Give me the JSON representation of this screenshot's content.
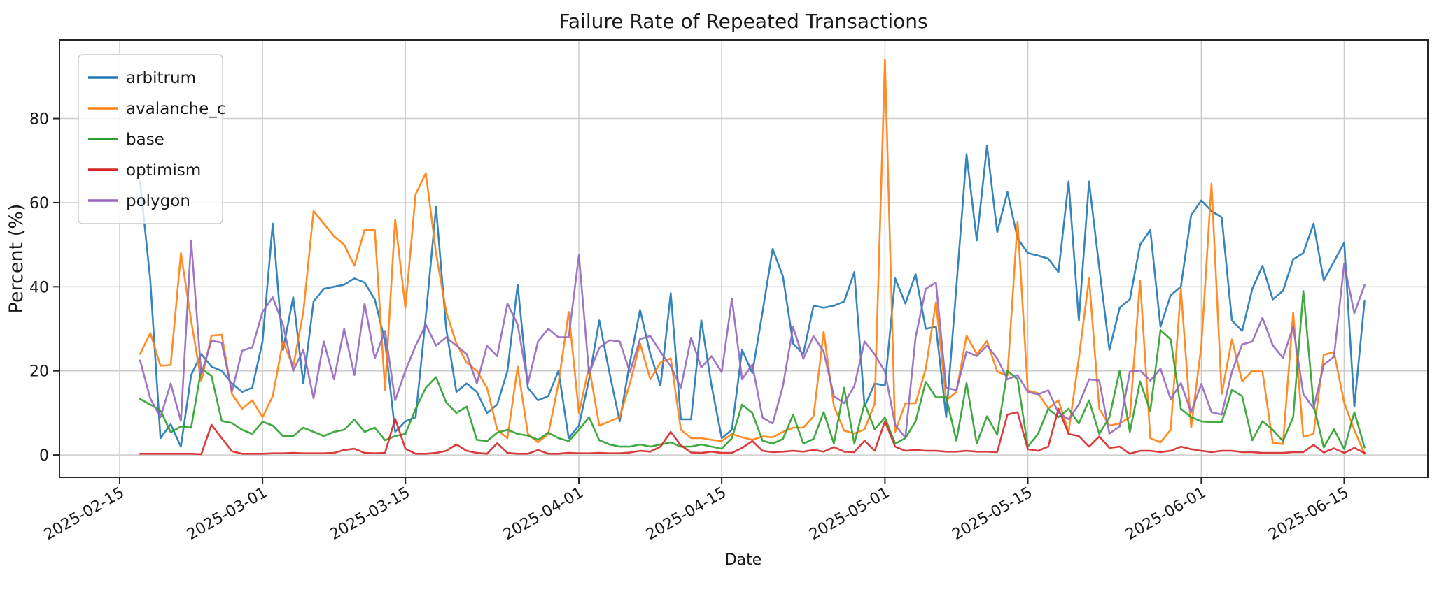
{
  "title": "Failure Rate of Repeated Transactions",
  "xlabel": "Date",
  "ylabel": "Percent (%)",
  "legend": {
    "position": "upper left",
    "entries": [
      "arbitrum",
      "avalanche_c",
      "base",
      "optimism",
      "polygon"
    ]
  },
  "colors": {
    "arbitrum": "#1f77b4",
    "avalanche_c": "#ff7f0e",
    "base": "#2ca02c",
    "optimism": "#d62728",
    "polygon": "#9467bd",
    "grid": "#cccccc",
    "spine": "#262626",
    "background": "#ffffff"
  },
  "chart_data": {
    "type": "line",
    "title": "Failure Rate of Repeated Transactions",
    "xlabel": "Date",
    "ylabel": "Percent (%)",
    "grid": true,
    "legend_position": "upper left",
    "x_start_date": "2025-02-17",
    "x_end_date": "2025-06-17",
    "x_frequency": "daily",
    "x_tick_labels": [
      "2025-02-15",
      "2025-03-01",
      "2025-03-15",
      "2025-04-01",
      "2025-04-15",
      "2025-05-01",
      "2025-05-15",
      "2025-06-01",
      "2025-06-15"
    ],
    "x_tick_day_offsets": [
      -2,
      12,
      26,
      43,
      57,
      73,
      87,
      104,
      118
    ],
    "xlim_day_offsets": [
      -7.9,
      126.2
    ],
    "y_ticks": [
      0,
      20,
      40,
      60,
      80
    ],
    "ylim": [
      -5.3,
      98.7
    ],
    "series": [
      {
        "name": "arbitrum",
        "color": "#1f77b4",
        "values": [
          65,
          41.5,
          4,
          7.3,
          2,
          19,
          24,
          21,
          20,
          17,
          15,
          16,
          27,
          55,
          25,
          37.5,
          17,
          36.5,
          39.5,
          40,
          40.5,
          42,
          41,
          37,
          27,
          5.5,
          8,
          9,
          33,
          59,
          30,
          15,
          17,
          15,
          10,
          12,
          20,
          40.5,
          16,
          13,
          14,
          20,
          4,
          7,
          18,
          32,
          19.5,
          8,
          22,
          34.5,
          24,
          16.5,
          38.5,
          8.5,
          8.5,
          32,
          16.5,
          4,
          6,
          25,
          19.5,
          34,
          49,
          42.5,
          26.5,
          24,
          35.5,
          35,
          35.5,
          36.5,
          43.5,
          11.5,
          17,
          16.5,
          42,
          36,
          43,
          30,
          30.5,
          9,
          40,
          71.5,
          51,
          73.5,
          53,
          62.5,
          51.5,
          48,
          47.4,
          46.7,
          43.5,
          65,
          32,
          65,
          44.5,
          25,
          35,
          37,
          50,
          53.5,
          30.5,
          38,
          40,
          57,
          60.5,
          58,
          56.5,
          32,
          29.5,
          39.5,
          45,
          37,
          39,
          46.5,
          48,
          55,
          41.5,
          46,
          50.5,
          11.5,
          36.7
        ]
      },
      {
        "name": "avalanche_c",
        "color": "#ff7f0e",
        "values": [
          24,
          29,
          21.2,
          21.4,
          48,
          32,
          17.6,
          28.4,
          28.6,
          14.5,
          11,
          13,
          9,
          14,
          27,
          21,
          34,
          58,
          55,
          52,
          50,
          45,
          53.5,
          53.5,
          15.5,
          56,
          35,
          62,
          67,
          48,
          34,
          26.5,
          22,
          20,
          16,
          6,
          4,
          21,
          5,
          3,
          5,
          17,
          34,
          10,
          21,
          7,
          8,
          9,
          17,
          26.5,
          18,
          22,
          23,
          6,
          4,
          4,
          3.6,
          3.3,
          5,
          4.2,
          3.6,
          4.4,
          4.2,
          5.5,
          6.5,
          6.5,
          9.2,
          29.3,
          11.6,
          5.8,
          5.1,
          6.1,
          12.2,
          94,
          5.5,
          12.3,
          12.3,
          20.5,
          36.3,
          13,
          15,
          28.4,
          24,
          27.1,
          19.8,
          18.9,
          55.5,
          15.3,
          14.7,
          11.1,
          13,
          5.5,
          23,
          42,
          11,
          7,
          7.5,
          9,
          41.5,
          4,
          3,
          6,
          39.5,
          6.5,
          26,
          64.5,
          14.5,
          27.5,
          17.5,
          20,
          19.8,
          2.9,
          2.6,
          33.8,
          4.3,
          5,
          23.8,
          24.5,
          12.4,
          5.9,
          0.3
        ]
      },
      {
        "name": "base",
        "color": "#2ca02c",
        "values": [
          13.3,
          12,
          10.6,
          5.4,
          6.8,
          6.5,
          20.5,
          18.8,
          8.1,
          7.6,
          6,
          5,
          7.9,
          7,
          4.5,
          4.5,
          6.5,
          5.5,
          4.5,
          5.5,
          6,
          8.4,
          5.5,
          6.5,
          3.5,
          4.5,
          5,
          11,
          16,
          18.5,
          12.5,
          10,
          11.5,
          3.6,
          3.3,
          5.3,
          6,
          5,
          4.6,
          3.6,
          5.3,
          4,
          3.3,
          6,
          9,
          3.5,
          2.5,
          2,
          2,
          2.5,
          2,
          2.5,
          3,
          2,
          2,
          2.5,
          2,
          1.5,
          4,
          12,
          10,
          3.4,
          2.7,
          3.8,
          9.6,
          2.7,
          3.8,
          10.2,
          2.7,
          16,
          2.7,
          12.3,
          6.1,
          8.9,
          2.7,
          4,
          8,
          17.4,
          13.7,
          13.7,
          3.4,
          17.1,
          2.7,
          9.2,
          4.8,
          20,
          18,
          2,
          5,
          11,
          9,
          11,
          7.5,
          13,
          5,
          9,
          20,
          5.5,
          17.5,
          10.5,
          29.7,
          27.5,
          11,
          9,
          8,
          7.8,
          7.8,
          15.5,
          14,
          3.5,
          8,
          6,
          3.3,
          9,
          39,
          12,
          1.8,
          6.1,
          1.4,
          10.2,
          1.8
        ]
      },
      {
        "name": "optimism",
        "color": "#d62728",
        "values": [
          0.3,
          0.3,
          0.3,
          0.3,
          0.3,
          0.3,
          0.2,
          7.2,
          4,
          0.9,
          0.3,
          0.3,
          0.3,
          0.4,
          0.4,
          0.5,
          0.4,
          0.4,
          0.4,
          0.5,
          1.2,
          1.5,
          0.5,
          0.4,
          0.5,
          8.6,
          1.5,
          0.3,
          0.3,
          0.5,
          1,
          2.5,
          1,
          0.5,
          0.3,
          2.8,
          0.5,
          0.3,
          0.3,
          1.2,
          0.3,
          0.3,
          0.5,
          0.4,
          0.4,
          0.5,
          0.4,
          0.4,
          0.6,
          1,
          0.8,
          2,
          5.5,
          2.3,
          0.6,
          0.5,
          0.8,
          0.5,
          0.5,
          1.7,
          3.3,
          1,
          0.7,
          0.8,
          1,
          0.8,
          1.2,
          0.8,
          1.9,
          0.8,
          0.7,
          3.4,
          1,
          8,
          2,
          1,
          1.2,
          1,
          1,
          0.8,
          0.8,
          1,
          0.8,
          0.8,
          0.7,
          9.6,
          10.2,
          1.4,
          1,
          2,
          11,
          5,
          4.5,
          2,
          4.4,
          1.7,
          2,
          0.3,
          1,
          1,
          0.7,
          1,
          2,
          1.4,
          1,
          0.7,
          1,
          1,
          0.7,
          0.7,
          0.5,
          0.5,
          0.5,
          0.7,
          0.7,
          2.4,
          0.6,
          1.6,
          0.5,
          1.7,
          0.5
        ]
      },
      {
        "name": "polygon",
        "color": "#9467bd",
        "values": [
          22.5,
          13.4,
          9,
          17,
          8.1,
          51,
          19.2,
          27.2,
          26.7,
          15.1,
          24.8,
          25.6,
          34,
          37.5,
          31,
          20,
          25,
          13.5,
          27,
          18,
          30,
          19,
          36,
          23,
          29.5,
          13,
          20,
          26,
          31,
          26,
          28,
          26,
          24,
          17,
          26,
          23.5,
          36,
          31,
          17,
          27,
          30,
          28,
          28,
          47.5,
          19.4,
          25.5,
          27.3,
          27,
          19.7,
          27.6,
          28.3,
          24.5,
          21.1,
          16,
          27.9,
          20.8,
          23.5,
          19.7,
          37.2,
          18,
          21.5,
          8.9,
          7.5,
          16.4,
          30.4,
          22.9,
          28.3,
          24.6,
          14,
          12.3,
          16.4,
          27,
          23.9,
          19.8,
          7.2,
          4.1,
          28,
          39.5,
          41,
          16,
          15.4,
          24.6,
          23.5,
          26,
          23,
          18,
          19,
          15,
          14.4,
          15.4,
          10,
          8.5,
          12,
          18,
          17.7,
          5.1,
          6.8,
          19.8,
          20.1,
          17.7,
          20.5,
          13.3,
          17.1,
          10.2,
          16.9,
          10.2,
          9.6,
          19.8,
          26.3,
          27,
          32.6,
          26.1,
          23.1,
          30.6,
          14.5,
          11.1,
          21.4,
          23.4,
          45.5,
          33.7,
          40.4
        ]
      }
    ]
  }
}
